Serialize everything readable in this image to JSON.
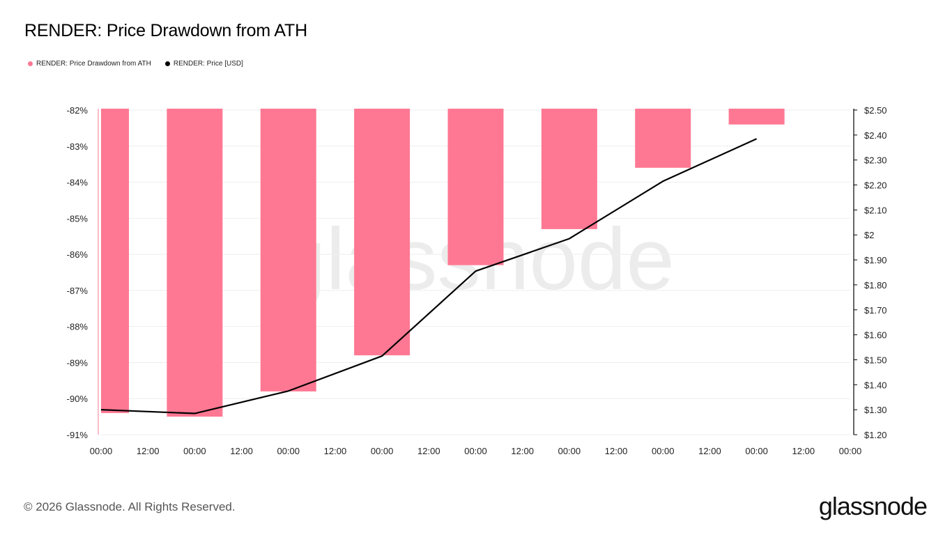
{
  "title": "RENDER: Price Drawdown from ATH",
  "footer": "© 2026 Glassnode. All Rights Reserved.",
  "logo": "glassnode",
  "watermark": "glassnode",
  "colors": {
    "bars": "#ff7893",
    "line": "#000000",
    "watermark": "#ececec"
  },
  "legend": [
    {
      "label": "RENDER: Price Drawdown from ATH",
      "color": "#ff7893"
    },
    {
      "label": "RENDER: Price [USD]",
      "color": "#000000"
    }
  ],
  "chart_data": {
    "type": "bar",
    "x_ticks": [
      "00:00",
      "12:00",
      "00:00",
      "12:00",
      "00:00",
      "12:00",
      "00:00",
      "12:00",
      "00:00",
      "12:00",
      "00:00",
      "12:00",
      "00:00",
      "12:00",
      "00:00",
      "12:00",
      "00:00"
    ],
    "y_left": {
      "min": -91,
      "max": -82,
      "ticks": [
        "-82%",
        "-83%",
        "-84%",
        "-85%",
        "-86%",
        "-87%",
        "-88%",
        "-89%",
        "-90%",
        "-91%"
      ]
    },
    "y_right": {
      "min": 1.2,
      "max": 2.5,
      "ticks": [
        "$2.50",
        "$2.40",
        "$2.30",
        "$2.20",
        "$2.10",
        "$2",
        "$1.90",
        "$1.80",
        "$1.70",
        "$1.60",
        "$1.50",
        "$1.40",
        "$1.30",
        "$1.20"
      ]
    },
    "series": [
      {
        "name": "RENDER: Price Drawdown from ATH",
        "type": "bar",
        "axis": "left",
        "values": [
          -90.4,
          -90.5,
          -89.8,
          -88.8,
          -86.3,
          -85.3,
          -83.6,
          -82.4
        ]
      },
      {
        "name": "RENDER: Price [USD]",
        "type": "line",
        "axis": "right",
        "values": [
          1.3,
          1.285,
          1.375,
          1.515,
          1.855,
          1.985,
          2.215,
          2.385
        ]
      }
    ],
    "grid": true
  }
}
